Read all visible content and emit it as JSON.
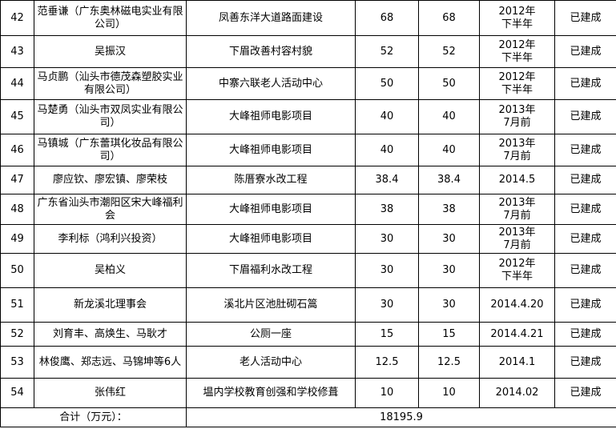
{
  "table": {
    "rows": [
      [
        "42",
        "范垂谦（广东奥林磁电实业有限公司）",
        "凤善东洋大道路面建设",
        "68",
        "68",
        "2012年\n下半年",
        "已建成"
      ],
      [
        "43",
        "吴振汉",
        "下眉改善村容村貌",
        "52",
        "52",
        "2012年\n下半年",
        "已建成"
      ],
      [
        "44",
        "马贞鹏（汕头市德茂森塑胶实业有限公司）",
        "中寨六联老人活动中心",
        "50",
        "50",
        "2012年\n下半年",
        "已建成"
      ],
      [
        "45",
        "马楚勇（汕头市双凤实业有限公司）",
        "大峰祖师电影项目",
        "40",
        "40",
        "2013年\n7月前",
        "已建成"
      ],
      [
        "46",
        "马镇城（广东蕾琪化妆品有限公司）",
        "大峰祖师电影项目",
        "40",
        "40",
        "2013年\n7月前",
        "已建成"
      ],
      [
        "47",
        "廖应钦、廖宏镇、廖荣枝",
        "陈厝寮水改工程",
        "38.4",
        "38.4",
        "2014.5",
        "已建成"
      ],
      [
        "48",
        "广东省汕头市潮阳区宋大峰福利会",
        "大峰祖师电影项目",
        "38",
        "38",
        "2013年\n7月前",
        "已建成"
      ],
      [
        "49",
        "李利标（鸿利兴投资）",
        "大峰祖师电影项目",
        "30",
        "30",
        "2013年\n7月前",
        "已建成"
      ],
      [
        "50",
        "吴柏义",
        "下眉福利水改工程",
        "30",
        "30",
        "2012年\n下半年",
        "已建成"
      ],
      [
        "51",
        "新龙溪北理事会",
        "溪北片区池肚砌石篙",
        "30",
        "30",
        "2014.4.20",
        "已建成"
      ],
      [
        "52",
        "刘育丰、高焕生、马耿才",
        "公厕一座",
        "15",
        "15",
        "2014.4.21",
        "已建成"
      ],
      [
        "53",
        "林俊鹰、郑志远、马锦坤等6人",
        "老人活动中心",
        "12.5",
        "12.5",
        "2014.1",
        "已建成"
      ],
      [
        "54",
        "张伟红",
        "塭内学校教育创强和学校修葺",
        "10",
        "10",
        "2014.02",
        "已建成"
      ]
    ],
    "total": {
      "label": "合计（万元）：",
      "value": "18195.9"
    }
  }
}
